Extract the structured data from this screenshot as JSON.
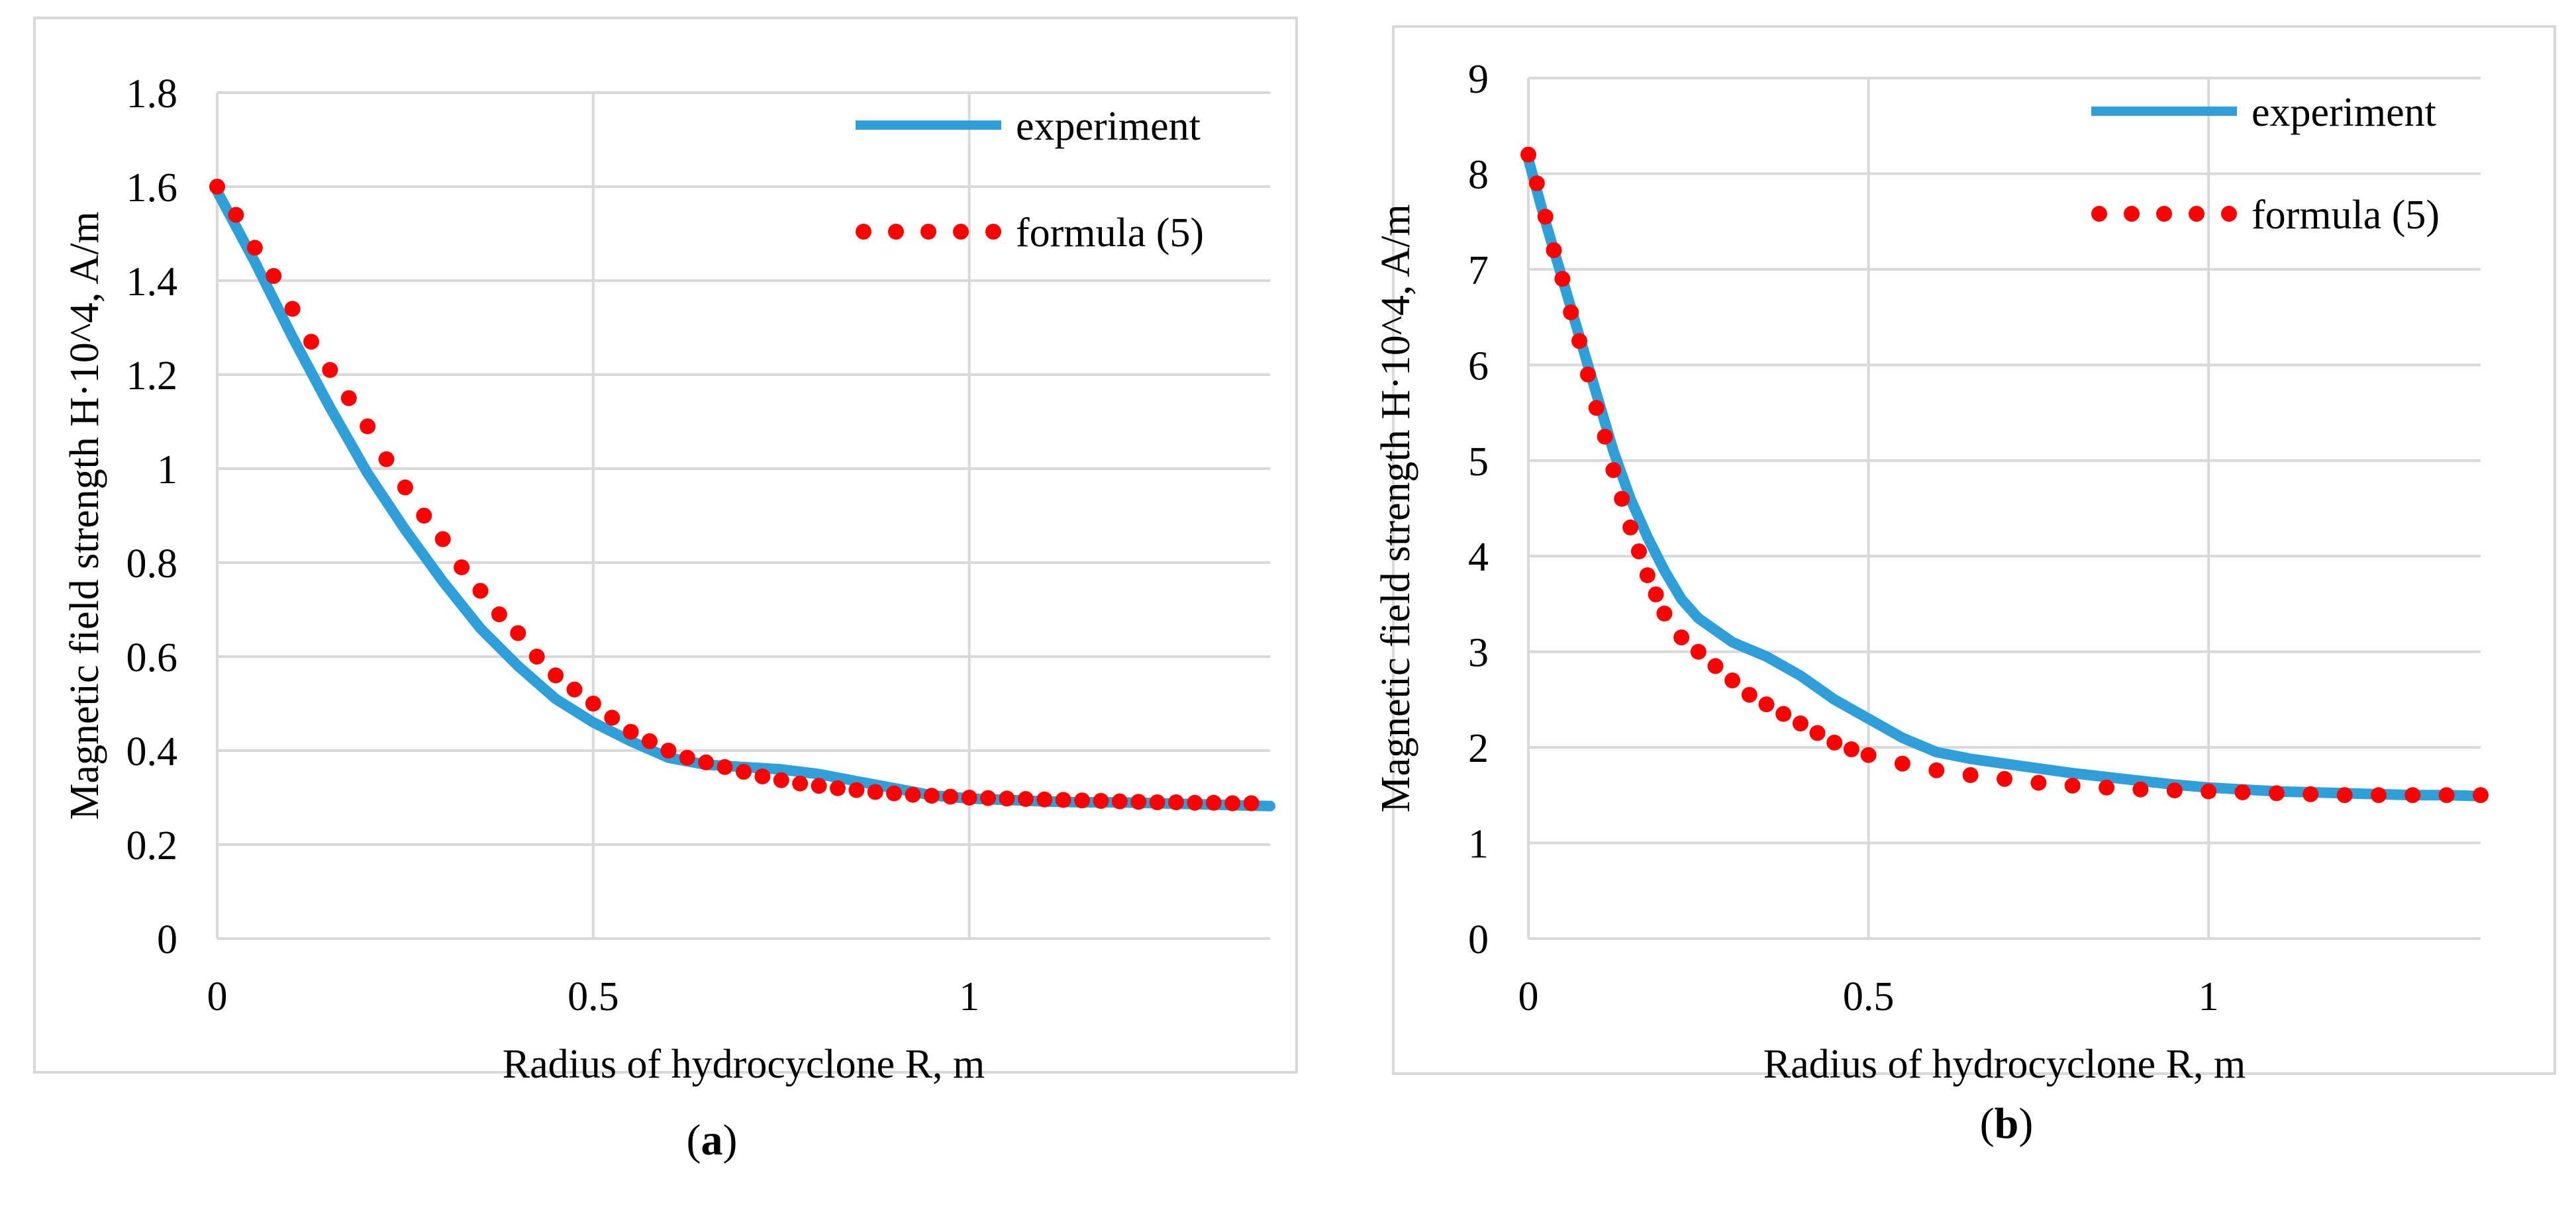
{
  "chart_data": [
    {
      "panel": "a",
      "type": "line",
      "xlabel": "Radius of hydrocyclone R, m",
      "ylabel": "Magnetic field strength H·10^4, A/m",
      "xlim": [
        0,
        1.4
      ],
      "ylim": [
        0,
        1.8
      ],
      "x_ticks": [
        "0",
        "0.5",
        "1"
      ],
      "y_ticks": [
        "0",
        "0.2",
        "0.4",
        "0.6",
        "0.8",
        "1",
        "1.2",
        "1.4",
        "1.6",
        "1.8"
      ],
      "grid": true,
      "legend": "top-right",
      "series": [
        {
          "name": "experiment",
          "style": "solid",
          "color": "#2E9FD9",
          "x": [
            0,
            0.05,
            0.1,
            0.15,
            0.2,
            0.25,
            0.3,
            0.35,
            0.4,
            0.45,
            0.5,
            0.55,
            0.6,
            0.65,
            0.7,
            0.75,
            0.8,
            0.85,
            0.9,
            0.95,
            1.0,
            1.05,
            1.1,
            1.15,
            1.2,
            1.25,
            1.3,
            1.35,
            1.4
          ],
          "y": [
            1.59,
            1.44,
            1.28,
            1.13,
            0.99,
            0.87,
            0.76,
            0.66,
            0.58,
            0.51,
            0.46,
            0.42,
            0.385,
            0.37,
            0.365,
            0.36,
            0.35,
            0.335,
            0.32,
            0.305,
            0.298,
            0.295,
            0.292,
            0.29,
            0.29,
            0.288,
            0.286,
            0.284,
            0.282
          ]
        },
        {
          "name": "formula (5)",
          "style": "dotted",
          "color": "#FF0000",
          "x": [
            0,
            0.025,
            0.05,
            0.075,
            0.1,
            0.125,
            0.15,
            0.175,
            0.2,
            0.225,
            0.25,
            0.275,
            0.3,
            0.325,
            0.35,
            0.375,
            0.4,
            0.425,
            0.45,
            0.475,
            0.5,
            0.525,
            0.55,
            0.575,
            0.6,
            0.625,
            0.65,
            0.675,
            0.7,
            0.725,
            0.75,
            0.775,
            0.8,
            0.825,
            0.85,
            0.875,
            0.9,
            0.925,
            0.95,
            0.975,
            1.0,
            1.025,
            1.05,
            1.075,
            1.1,
            1.125,
            1.15,
            1.175,
            1.2,
            1.225,
            1.25,
            1.275,
            1.3,
            1.325,
            1.35,
            1.375
          ],
          "y": [
            1.6,
            1.54,
            1.47,
            1.41,
            1.34,
            1.27,
            1.21,
            1.15,
            1.09,
            1.02,
            0.96,
            0.9,
            0.85,
            0.79,
            0.74,
            0.69,
            0.65,
            0.6,
            0.56,
            0.53,
            0.5,
            0.47,
            0.44,
            0.42,
            0.4,
            0.385,
            0.375,
            0.365,
            0.355,
            0.345,
            0.337,
            0.33,
            0.325,
            0.32,
            0.316,
            0.312,
            0.309,
            0.306,
            0.304,
            0.302,
            0.3,
            0.299,
            0.298,
            0.297,
            0.296,
            0.295,
            0.294,
            0.293,
            0.292,
            0.291,
            0.29,
            0.29,
            0.289,
            0.289,
            0.288,
            0.288
          ]
        }
      ]
    },
    {
      "panel": "b",
      "type": "line",
      "xlabel": "Radius of hydrocyclone R, m",
      "ylabel": "Magnetic field strength H·10^4, A/m",
      "xlim": [
        0,
        1.4
      ],
      "ylim": [
        0,
        9
      ],
      "x_ticks": [
        "0",
        "0.5",
        "1"
      ],
      "y_ticks": [
        "0",
        "1",
        "2",
        "3",
        "4",
        "5",
        "6",
        "7",
        "8",
        "9"
      ],
      "grid": true,
      "legend": "top-right",
      "series": [
        {
          "name": "experiment",
          "style": "solid",
          "color": "#2E9FD9",
          "x": [
            0,
            0.025,
            0.05,
            0.075,
            0.1,
            0.125,
            0.15,
            0.175,
            0.2,
            0.225,
            0.25,
            0.3,
            0.35,
            0.4,
            0.45,
            0.5,
            0.55,
            0.6,
            0.65,
            0.7,
            0.75,
            0.8,
            0.85,
            0.9,
            0.95,
            1.0,
            1.05,
            1.1,
            1.15,
            1.2,
            1.25,
            1.3,
            1.35,
            1.4
          ],
          "y": [
            8.15,
            7.5,
            6.9,
            6.3,
            5.7,
            5.1,
            4.6,
            4.2,
            3.85,
            3.55,
            3.35,
            3.1,
            2.95,
            2.75,
            2.5,
            2.3,
            2.1,
            1.95,
            1.88,
            1.83,
            1.78,
            1.73,
            1.69,
            1.65,
            1.61,
            1.58,
            1.56,
            1.54,
            1.53,
            1.52,
            1.51,
            1.5,
            1.5,
            1.49
          ]
        },
        {
          "name": "formula (5)",
          "style": "dotted",
          "color": "#FF0000",
          "x": [
            0,
            0.0125,
            0.025,
            0.0375,
            0.05,
            0.0625,
            0.075,
            0.0875,
            0.1,
            0.1125,
            0.125,
            0.1375,
            0.15,
            0.1625,
            0.175,
            0.1875,
            0.2,
            0.225,
            0.25,
            0.275,
            0.3,
            0.325,
            0.35,
            0.375,
            0.4,
            0.425,
            0.45,
            0.475,
            0.5,
            0.55,
            0.6,
            0.65,
            0.7,
            0.75,
            0.8,
            0.85,
            0.9,
            0.95,
            1.0,
            1.05,
            1.1,
            1.15,
            1.2,
            1.25,
            1.3,
            1.35,
            1.4
          ],
          "y": [
            8.2,
            7.9,
            7.55,
            7.2,
            6.9,
            6.55,
            6.25,
            5.9,
            5.55,
            5.25,
            4.9,
            4.6,
            4.3,
            4.05,
            3.8,
            3.6,
            3.4,
            3.15,
            3.0,
            2.85,
            2.7,
            2.55,
            2.45,
            2.35,
            2.25,
            2.15,
            2.05,
            1.98,
            1.92,
            1.83,
            1.76,
            1.71,
            1.67,
            1.63,
            1.6,
            1.58,
            1.56,
            1.55,
            1.54,
            1.53,
            1.52,
            1.51,
            1.5,
            1.5,
            1.5,
            1.5,
            1.5
          ]
        }
      ]
    }
  ],
  "captions": {
    "a": "a",
    "b": "b"
  }
}
